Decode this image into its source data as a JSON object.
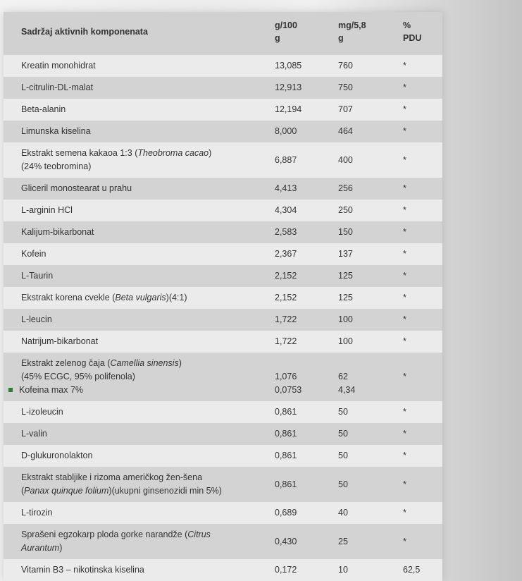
{
  "header": {
    "name": "Sadržaj aktivnih komponenata",
    "g100_l1": "g/100",
    "g100_l2": "g",
    "mg_l1": "mg/5,8",
    "mg_l2": "g",
    "pdu_l1": "%",
    "pdu_l2": "PDU"
  },
  "bullet_color": "#2e7d32",
  "rows": [
    {
      "lines": [
        [
          [
            "Kreatin monohidrat",
            0
          ]
        ]
      ],
      "g": [
        "13,085"
      ],
      "mg": [
        "760"
      ],
      "pdu": "*"
    },
    {
      "lines": [
        [
          [
            "L-citrulin-DL-malat",
            0
          ]
        ]
      ],
      "g": [
        "12,913"
      ],
      "mg": [
        "750"
      ],
      "pdu": "*"
    },
    {
      "lines": [
        [
          [
            "Beta-alanin",
            0
          ]
        ]
      ],
      "g": [
        "12,194"
      ],
      "mg": [
        "707"
      ],
      "pdu": "*"
    },
    {
      "lines": [
        [
          [
            "Limunska kiselina",
            0
          ]
        ]
      ],
      "g": [
        "8,000"
      ],
      "mg": [
        "464"
      ],
      "pdu": "*"
    },
    {
      "lines": [
        [
          [
            "Ekstrakt semena kakaoa 1:3 (",
            0
          ],
          [
            "Theobroma cacao",
            1
          ],
          [
            ")",
            0
          ]
        ],
        [
          [
            "(24% teobromina)",
            0
          ]
        ]
      ],
      "g": [
        "6,887"
      ],
      "mg": [
        "400"
      ],
      "pdu": "*"
    },
    {
      "lines": [
        [
          [
            "Gliceril monostearat u prahu",
            0
          ]
        ]
      ],
      "g": [
        "4,413"
      ],
      "mg": [
        "256"
      ],
      "pdu": "*"
    },
    {
      "lines": [
        [
          [
            "L-arginin HCl",
            0
          ]
        ]
      ],
      "g": [
        "4,304"
      ],
      "mg": [
        "250"
      ],
      "pdu": "*"
    },
    {
      "lines": [
        [
          [
            "Kalijum-bikarbonat",
            0
          ]
        ]
      ],
      "g": [
        "2,583"
      ],
      "mg": [
        "150"
      ],
      "pdu": "*"
    },
    {
      "lines": [
        [
          [
            "Kofein",
            0
          ]
        ]
      ],
      "g": [
        "2,367"
      ],
      "mg": [
        "137"
      ],
      "pdu": "*"
    },
    {
      "lines": [
        [
          [
            "L-Taurin",
            0
          ]
        ]
      ],
      "g": [
        "2,152"
      ],
      "mg": [
        "125"
      ],
      "pdu": "*"
    },
    {
      "lines": [
        [
          [
            "Ekstrakt korena cvekle (",
            0
          ],
          [
            "Beta vulgaris",
            1
          ],
          [
            ")(4:1)",
            0
          ]
        ]
      ],
      "g": [
        "2,152"
      ],
      "mg": [
        "125"
      ],
      "pdu": "*"
    },
    {
      "lines": [
        [
          [
            "L-leucin",
            0
          ]
        ]
      ],
      "g": [
        "1,722"
      ],
      "mg": [
        "100"
      ],
      "pdu": "*"
    },
    {
      "lines": [
        [
          [
            "Natrijum-bikarbonat",
            0
          ]
        ]
      ],
      "g": [
        "1,722"
      ],
      "mg": [
        "100"
      ],
      "pdu": "*"
    },
    {
      "lines": [
        [
          [
            "Ekstrakt zelenog čaja (",
            0
          ],
          [
            "Camellia sinensis",
            1
          ],
          [
            ")",
            0
          ]
        ],
        [
          [
            "(45% ECGC, 95% polifenola)",
            0
          ]
        ],
        [
          [
            "Kofeina max 7%",
            2
          ]
        ]
      ],
      "g": [
        "1,076",
        "0,0753"
      ],
      "mg": [
        "62",
        "4,34"
      ],
      "pdu": "*"
    },
    {
      "lines": [
        [
          [
            "L-izoleucin",
            0
          ]
        ]
      ],
      "g": [
        "0,861"
      ],
      "mg": [
        "50"
      ],
      "pdu": "*"
    },
    {
      "lines": [
        [
          [
            "L-valin",
            0
          ]
        ]
      ],
      "g": [
        "0,861"
      ],
      "mg": [
        "50"
      ],
      "pdu": "*"
    },
    {
      "lines": [
        [
          [
            "D-glukuronolakton",
            0
          ]
        ]
      ],
      "g": [
        "0,861"
      ],
      "mg": [
        "50"
      ],
      "pdu": "*"
    },
    {
      "lines": [
        [
          [
            "Ekstrakt stabljike i rizoma američkog žen-šena",
            0
          ]
        ],
        [
          [
            "(",
            0
          ],
          [
            "Panax quinque folium",
            1
          ],
          [
            ")(ukupni ginsenozidi min 5%)",
            0
          ]
        ]
      ],
      "g": [
        "0,861"
      ],
      "mg": [
        "50"
      ],
      "pdu": "*"
    },
    {
      "lines": [
        [
          [
            "L-tirozin",
            0
          ]
        ]
      ],
      "g": [
        "0,689"
      ],
      "mg": [
        "40"
      ],
      "pdu": "*"
    },
    {
      "lines": [
        [
          [
            "Sprašeni egzokarp ploda gorke narandže (",
            0
          ],
          [
            "Citrus",
            1
          ]
        ],
        [
          [
            "Aurantum",
            1
          ],
          [
            ")",
            0
          ]
        ]
      ],
      "g": [
        "0,430"
      ],
      "mg": [
        "25"
      ],
      "pdu": "*"
    },
    {
      "lines": [
        [
          [
            "Vitamin B3 – nikotinska kiselina",
            0
          ]
        ]
      ],
      "g": [
        "0,172"
      ],
      "mg": [
        "10"
      ],
      "pdu": "62,5"
    }
  ]
}
